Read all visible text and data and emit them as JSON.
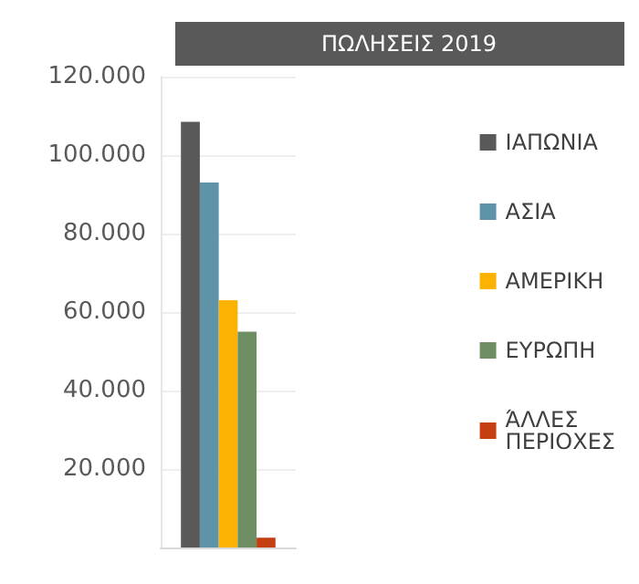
{
  "chart_data": {
    "type": "bar",
    "title": "ΠΩΛΗΣΕΙΣ 2019",
    "categories": [
      null
    ],
    "series": [
      {
        "name": "ΙΑΠΩΝΙΑ",
        "color": "#595959",
        "values": [
          108500
        ]
      },
      {
        "name": "ΑΣΙΑ",
        "color": "#5f93a8",
        "values": [
          93000
        ]
      },
      {
        "name": "ΑΜΕΡΙΚΗ",
        "color": "#fbb200",
        "values": [
          63000
        ]
      },
      {
        "name": "ΕΥΡΩΠΗ",
        "color": "#6e8f63",
        "values": [
          55000
        ]
      },
      {
        "name": "ΆΛΛΕΣ ΠΕΡΙΟΧΕΣ",
        "color": "#c63f12",
        "values": [
          2500
        ]
      }
    ],
    "ylim": [
      0,
      120000
    ],
    "yticks": [
      {
        "value": 0,
        "label": null
      },
      {
        "value": 20000,
        "label": "20.000"
      },
      {
        "value": 40000,
        "label": "40.000"
      },
      {
        "value": 60000,
        "label": "60.000"
      },
      {
        "value": 80000,
        "label": "80.000"
      },
      {
        "value": 100000,
        "label": "100.000"
      },
      {
        "value": 120000,
        "label": "120.000"
      }
    ],
    "grid": "y",
    "legend": "right"
  }
}
